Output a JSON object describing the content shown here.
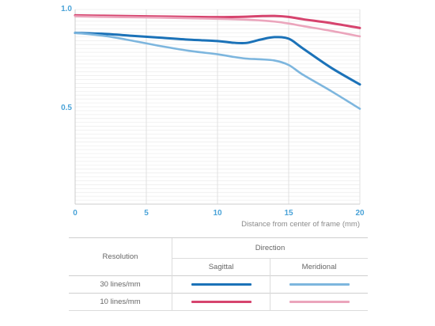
{
  "chart_data": {
    "type": "line",
    "xlabel": "Distance from center of frame (mm)",
    "xlim": [
      0,
      20
    ],
    "ylim": [
      0,
      1.0
    ],
    "x_ticks": [
      0,
      5,
      10,
      15,
      20
    ],
    "y_ticks": [
      0.5,
      1.0
    ],
    "y_tick_labels": [
      "0.5",
      "1.0"
    ],
    "grid": true,
    "series": [
      {
        "name": "10 lines/mm Sagittal",
        "color": "#d6446e",
        "style": "thick",
        "x": [
          0,
          2,
          4,
          6,
          8,
          10,
          12,
          13,
          14,
          15,
          16,
          18,
          20
        ],
        "y": [
          0.97,
          0.968,
          0.966,
          0.964,
          0.962,
          0.961,
          0.963,
          0.966,
          0.967,
          0.962,
          0.95,
          0.93,
          0.905
        ]
      },
      {
        "name": "10 lines/mm Meridional",
        "color": "#eba5bc",
        "style": "thin",
        "x": [
          0,
          2,
          4,
          6,
          8,
          10,
          12,
          13,
          14,
          15,
          16,
          18,
          20
        ],
        "y": [
          0.965,
          0.962,
          0.96,
          0.958,
          0.955,
          0.952,
          0.948,
          0.944,
          0.938,
          0.928,
          0.915,
          0.89,
          0.862
        ]
      },
      {
        "name": "30 lines/mm Sagittal",
        "color": "#1b72b8",
        "style": "thick",
        "x": [
          0,
          2,
          4,
          6,
          8,
          10,
          11,
          12,
          13,
          14,
          15,
          16,
          18,
          20
        ],
        "y": [
          0.88,
          0.875,
          0.865,
          0.855,
          0.845,
          0.838,
          0.83,
          0.828,
          0.845,
          0.858,
          0.85,
          0.8,
          0.7,
          0.615
        ]
      },
      {
        "name": "30 lines/mm Meridional",
        "color": "#7db6de",
        "style": "thin",
        "x": [
          0,
          2,
          4,
          6,
          8,
          10,
          11,
          12,
          13,
          14,
          15,
          16,
          18,
          20
        ],
        "y": [
          0.88,
          0.865,
          0.84,
          0.812,
          0.788,
          0.77,
          0.758,
          0.748,
          0.744,
          0.738,
          0.715,
          0.665,
          0.58,
          0.49
        ]
      }
    ]
  },
  "legend": {
    "resolution_header": "Resolution",
    "direction_header": "Direction",
    "sagittal_header": "Sagittal",
    "meridional_header": "Meridional",
    "rows": [
      {
        "label": "30 lines/mm",
        "sagittal_color": "#1b72b8",
        "meridional_color": "#7db6de"
      },
      {
        "label": "10 lines/mm",
        "sagittal_color": "#d6446e",
        "meridional_color": "#eba5bc"
      }
    ]
  }
}
